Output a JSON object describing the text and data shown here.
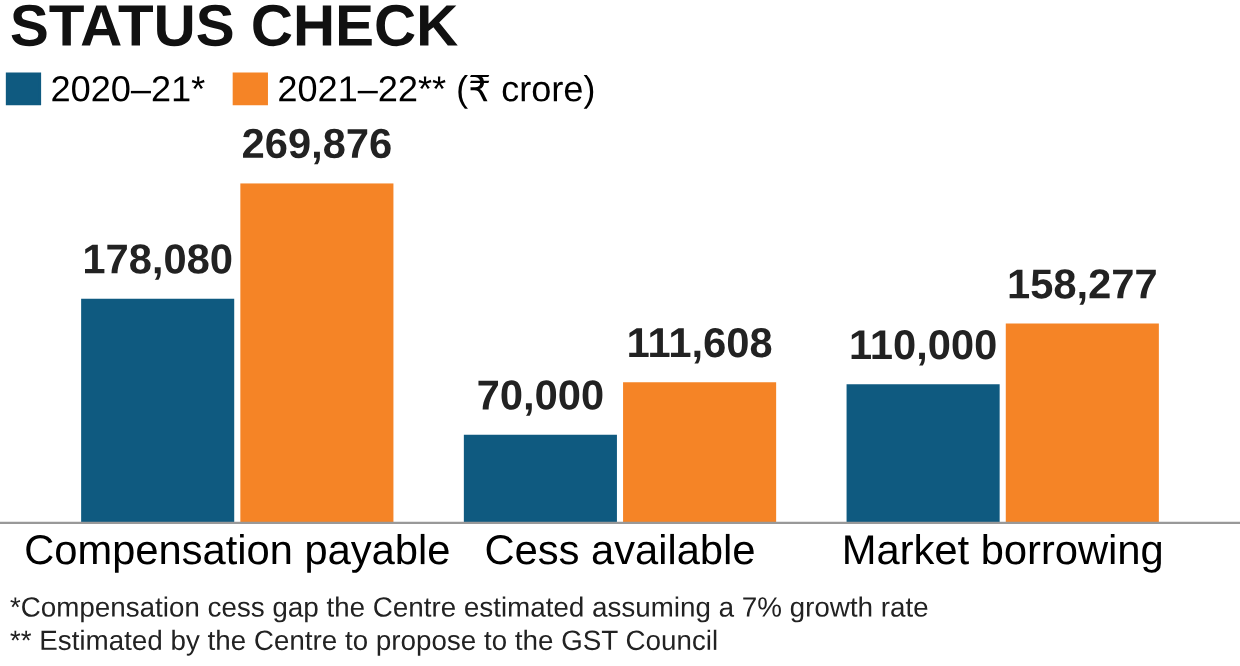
{
  "chart_data": {
    "type": "bar",
    "title": "STATUS CHECK",
    "categories": [
      "Compensation payable",
      "Cess available",
      "Market borrowing"
    ],
    "series": [
      {
        "name": "2020–21*",
        "color": "#0f5a80",
        "values": [
          178080,
          70000,
          110000
        ],
        "value_labels": [
          "178,080",
          "70,000",
          "110,000"
        ]
      },
      {
        "name": "2021–22** (₹ crore)",
        "color": "#f58426",
        "values": [
          269876,
          111608,
          158277
        ],
        "value_labels": [
          "269,876",
          "111,608",
          "158,277"
        ]
      }
    ],
    "legend": "top left",
    "grid": false,
    "annotations": [
      "*Compensation cess gap the Centre estimated assuming a 7% growth rate",
      "** Estimated by the Centre to propose to the GST Council"
    ]
  }
}
